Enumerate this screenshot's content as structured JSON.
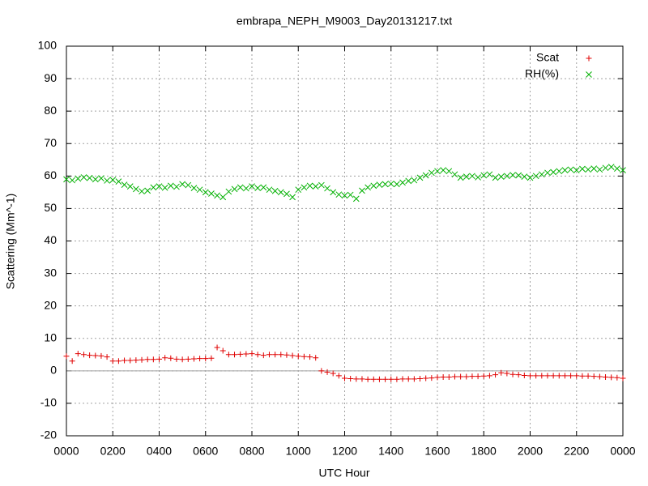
{
  "chart_data": {
    "type": "scatter",
    "title": "embrapa_NEPH_M9003_Day20131217.txt",
    "x_label": "UTC Hour",
    "y_label": "Scattering (Mm^-1)",
    "xlim": [
      0,
      24
    ],
    "ylim": [
      -20,
      100
    ],
    "xticks": [
      {
        "value": 0,
        "label": "0000"
      },
      {
        "value": 2,
        "label": "0200"
      },
      {
        "value": 4,
        "label": "0400"
      },
      {
        "value": 6,
        "label": "0600"
      },
      {
        "value": 8,
        "label": "0800"
      },
      {
        "value": 10,
        "label": "1000"
      },
      {
        "value": 12,
        "label": "1200"
      },
      {
        "value": 14,
        "label": "1400"
      },
      {
        "value": 16,
        "label": "1600"
      },
      {
        "value": 18,
        "label": "1800"
      },
      {
        "value": 20,
        "label": "2000"
      },
      {
        "value": 22,
        "label": "2200"
      },
      {
        "value": 24,
        "label": "0000"
      }
    ],
    "yticks": [
      -20,
      -10,
      0,
      10,
      20,
      30,
      40,
      50,
      60,
      70,
      80,
      90,
      100
    ],
    "grid": true,
    "zeroaxis": true,
    "legend": "top-right",
    "x": [
      0,
      0.25,
      0.5,
      0.75,
      1,
      1.25,
      1.5,
      1.75,
      2,
      2.25,
      2.5,
      2.75,
      3,
      3.25,
      3.5,
      3.75,
      4,
      4.25,
      4.5,
      4.75,
      5,
      5.25,
      5.5,
      5.75,
      6,
      6.25,
      6.5,
      6.75,
      7,
      7.25,
      7.5,
      7.75,
      8,
      8.25,
      8.5,
      8.75,
      9,
      9.25,
      9.5,
      9.75,
      10,
      10.25,
      10.5,
      10.75,
      11,
      11.25,
      11.5,
      11.75,
      12,
      12.25,
      12.5,
      12.75,
      13,
      13.25,
      13.5,
      13.75,
      14,
      14.25,
      14.5,
      14.75,
      15,
      15.25,
      15.5,
      15.75,
      16,
      16.25,
      16.5,
      16.75,
      17,
      17.25,
      17.5,
      17.75,
      18,
      18.25,
      18.5,
      18.75,
      19,
      19.25,
      19.5,
      19.75,
      20,
      20.25,
      20.5,
      20.75,
      21,
      21.25,
      21.5,
      21.75,
      22,
      22.25,
      22.5,
      22.75,
      23,
      23.25,
      23.5,
      23.75,
      24
    ],
    "series": [
      {
        "name": "Scat",
        "color": "#e00000",
        "marker": "plus",
        "values": [
          4.5,
          3,
          5.3,
          5,
          4.8,
          4.7,
          4.6,
          4.3,
          3,
          3,
          3.2,
          3.2,
          3.3,
          3.4,
          3.5,
          3.5,
          3.6,
          4,
          3.9,
          3.6,
          3.5,
          3.6,
          3.7,
          3.8,
          3.8,
          3.9,
          7.2,
          6.2,
          5,
          5,
          5.1,
          5.2,
          5.3,
          5,
          4.8,
          5,
          5,
          5,
          4.9,
          4.7,
          4.5,
          4.4,
          4.3,
          4,
          0,
          -0.4,
          -0.8,
          -1.5,
          -2.3,
          -2.4,
          -2.5,
          -2.5,
          -2.6,
          -2.6,
          -2.6,
          -2.6,
          -2.6,
          -2.6,
          -2.5,
          -2.5,
          -2.5,
          -2.4,
          -2.3,
          -2.2,
          -2,
          -1.9,
          -1.9,
          -1.8,
          -1.8,
          -1.8,
          -1.7,
          -1.7,
          -1.6,
          -1.5,
          -1.2,
          -0.6,
          -0.8,
          -1.1,
          -1.2,
          -1.4,
          -1.5,
          -1.5,
          -1.5,
          -1.5,
          -1.5,
          -1.5,
          -1.5,
          -1.5,
          -1.5,
          -1.6,
          -1.6,
          -1.7,
          -1.8,
          -1.9,
          -2,
          -2.1,
          -2.3
        ]
      },
      {
        "name": "RH(%)",
        "color": "#00b000",
        "marker": "cross",
        "values": [
          59,
          58.7,
          59.2,
          59.6,
          59.4,
          59,
          59.3,
          58.6,
          58.8,
          58.3,
          57.3,
          56.8,
          56,
          55.3,
          55.5,
          56.5,
          56.8,
          56.4,
          57,
          56.7,
          57.5,
          57.2,
          56.3,
          55.8,
          55,
          54.6,
          54,
          53.5,
          55.2,
          56,
          56.5,
          56.2,
          56.8,
          56.3,
          56.5,
          55.8,
          55.4,
          55,
          54.5,
          53.5,
          55.8,
          56.5,
          57,
          56.8,
          57.2,
          56.2,
          55,
          54.3,
          54,
          54.2,
          53,
          55.5,
          56.5,
          57,
          57.3,
          57.5,
          57.6,
          57.5,
          58,
          58.5,
          58.7,
          59.5,
          60.2,
          61,
          61.5,
          61.8,
          61.5,
          60.5,
          59.5,
          59.8,
          60,
          59.6,
          60.2,
          60.5,
          59.5,
          59.8,
          60,
          60.3,
          60.2,
          59.8,
          59.5,
          60,
          60.5,
          61,
          61.2,
          61.5,
          61.8,
          62,
          61.8,
          62.2,
          62,
          62.3,
          62,
          62.5,
          62.8,
          62.3,
          61.8
        ]
      }
    ]
  }
}
